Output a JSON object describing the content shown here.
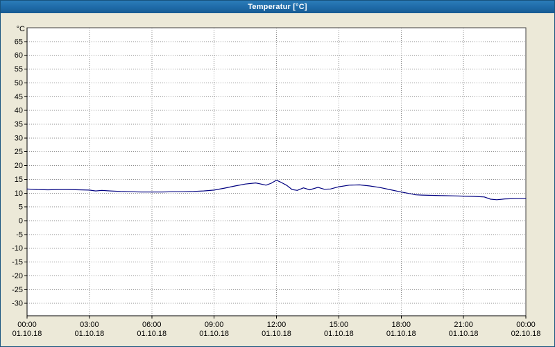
{
  "window": {
    "title": "Temperatur [°C]"
  },
  "colors": {
    "titlebar_bg": "#1e6aa7",
    "titlebar_text": "#ffffff",
    "window_bg": "#ece9d8",
    "plot_bg": "#ffffff",
    "grid": "#8c8c8c",
    "axis": "#000000",
    "plot_border": "#404040",
    "line": "#000080"
  },
  "chart_data": {
    "type": "line",
    "title": "Temperatur [°C]",
    "ylabel": "°C",
    "xlabel": "",
    "grid": "dotted",
    "legend": "none",
    "ylim": [
      -34.5,
      70
    ],
    "yticks": [
      65,
      60,
      55,
      50,
      45,
      40,
      35,
      30,
      25,
      20,
      15,
      10,
      5,
      0,
      -5,
      -10,
      -15,
      -20,
      -25,
      -30
    ],
    "x_hours_range": [
      0,
      24
    ],
    "xticks": [
      {
        "hour": 0,
        "time": "00:00",
        "date": "01.10.18"
      },
      {
        "hour": 3,
        "time": "03:00",
        "date": "01.10.18"
      },
      {
        "hour": 6,
        "time": "06:00",
        "date": "01.10.18"
      },
      {
        "hour": 9,
        "time": "09:00",
        "date": "01.10.18"
      },
      {
        "hour": 12,
        "time": "12:00",
        "date": "01.10.18"
      },
      {
        "hour": 15,
        "time": "15:00",
        "date": "01.10.18"
      },
      {
        "hour": 18,
        "time": "18:00",
        "date": "01.10.18"
      },
      {
        "hour": 21,
        "time": "21:00",
        "date": "01.10.18"
      },
      {
        "hour": 24,
        "time": "00:00",
        "date": "02.10.18"
      }
    ],
    "series": [
      {
        "name": "Temperatur",
        "color": "#000080",
        "points": [
          [
            0,
            11.5
          ],
          [
            0.5,
            11.3
          ],
          [
            1,
            11.2
          ],
          [
            1.5,
            11.3
          ],
          [
            2,
            11.3
          ],
          [
            2.5,
            11.2
          ],
          [
            3,
            11.1
          ],
          [
            3.3,
            10.8
          ],
          [
            3.6,
            11.0
          ],
          [
            4,
            10.8
          ],
          [
            4.5,
            10.6
          ],
          [
            5,
            10.5
          ],
          [
            5.5,
            10.4
          ],
          [
            6,
            10.4
          ],
          [
            6.5,
            10.4
          ],
          [
            7,
            10.5
          ],
          [
            7.5,
            10.5
          ],
          [
            8,
            10.6
          ],
          [
            8.5,
            10.8
          ],
          [
            9,
            11.1
          ],
          [
            9.5,
            11.8
          ],
          [
            10,
            12.6
          ],
          [
            10.5,
            13.3
          ],
          [
            11,
            13.7
          ],
          [
            11.2,
            13.4
          ],
          [
            11.5,
            12.9
          ],
          [
            11.75,
            13.6
          ],
          [
            12,
            14.7
          ],
          [
            12.2,
            14.0
          ],
          [
            12.5,
            12.8
          ],
          [
            12.75,
            11.3
          ],
          [
            13,
            11.0
          ],
          [
            13.3,
            11.9
          ],
          [
            13.6,
            11.2
          ],
          [
            14,
            12.1
          ],
          [
            14.3,
            11.4
          ],
          [
            14.6,
            11.5
          ],
          [
            15,
            12.3
          ],
          [
            15.5,
            12.9
          ],
          [
            16,
            13.0
          ],
          [
            16.5,
            12.6
          ],
          [
            17,
            12.0
          ],
          [
            17.5,
            11.2
          ],
          [
            18,
            10.4
          ],
          [
            18.3,
            10.0
          ],
          [
            18.7,
            9.4
          ],
          [
            19,
            9.3
          ],
          [
            19.5,
            9.2
          ],
          [
            20,
            9.1
          ],
          [
            20.5,
            9.0
          ],
          [
            21,
            8.9
          ],
          [
            21.5,
            8.8
          ],
          [
            22,
            8.6
          ],
          [
            22.3,
            7.8
          ],
          [
            22.6,
            7.6
          ],
          [
            23,
            7.9
          ],
          [
            23.5,
            8.0
          ],
          [
            24,
            8.0
          ]
        ]
      }
    ]
  }
}
